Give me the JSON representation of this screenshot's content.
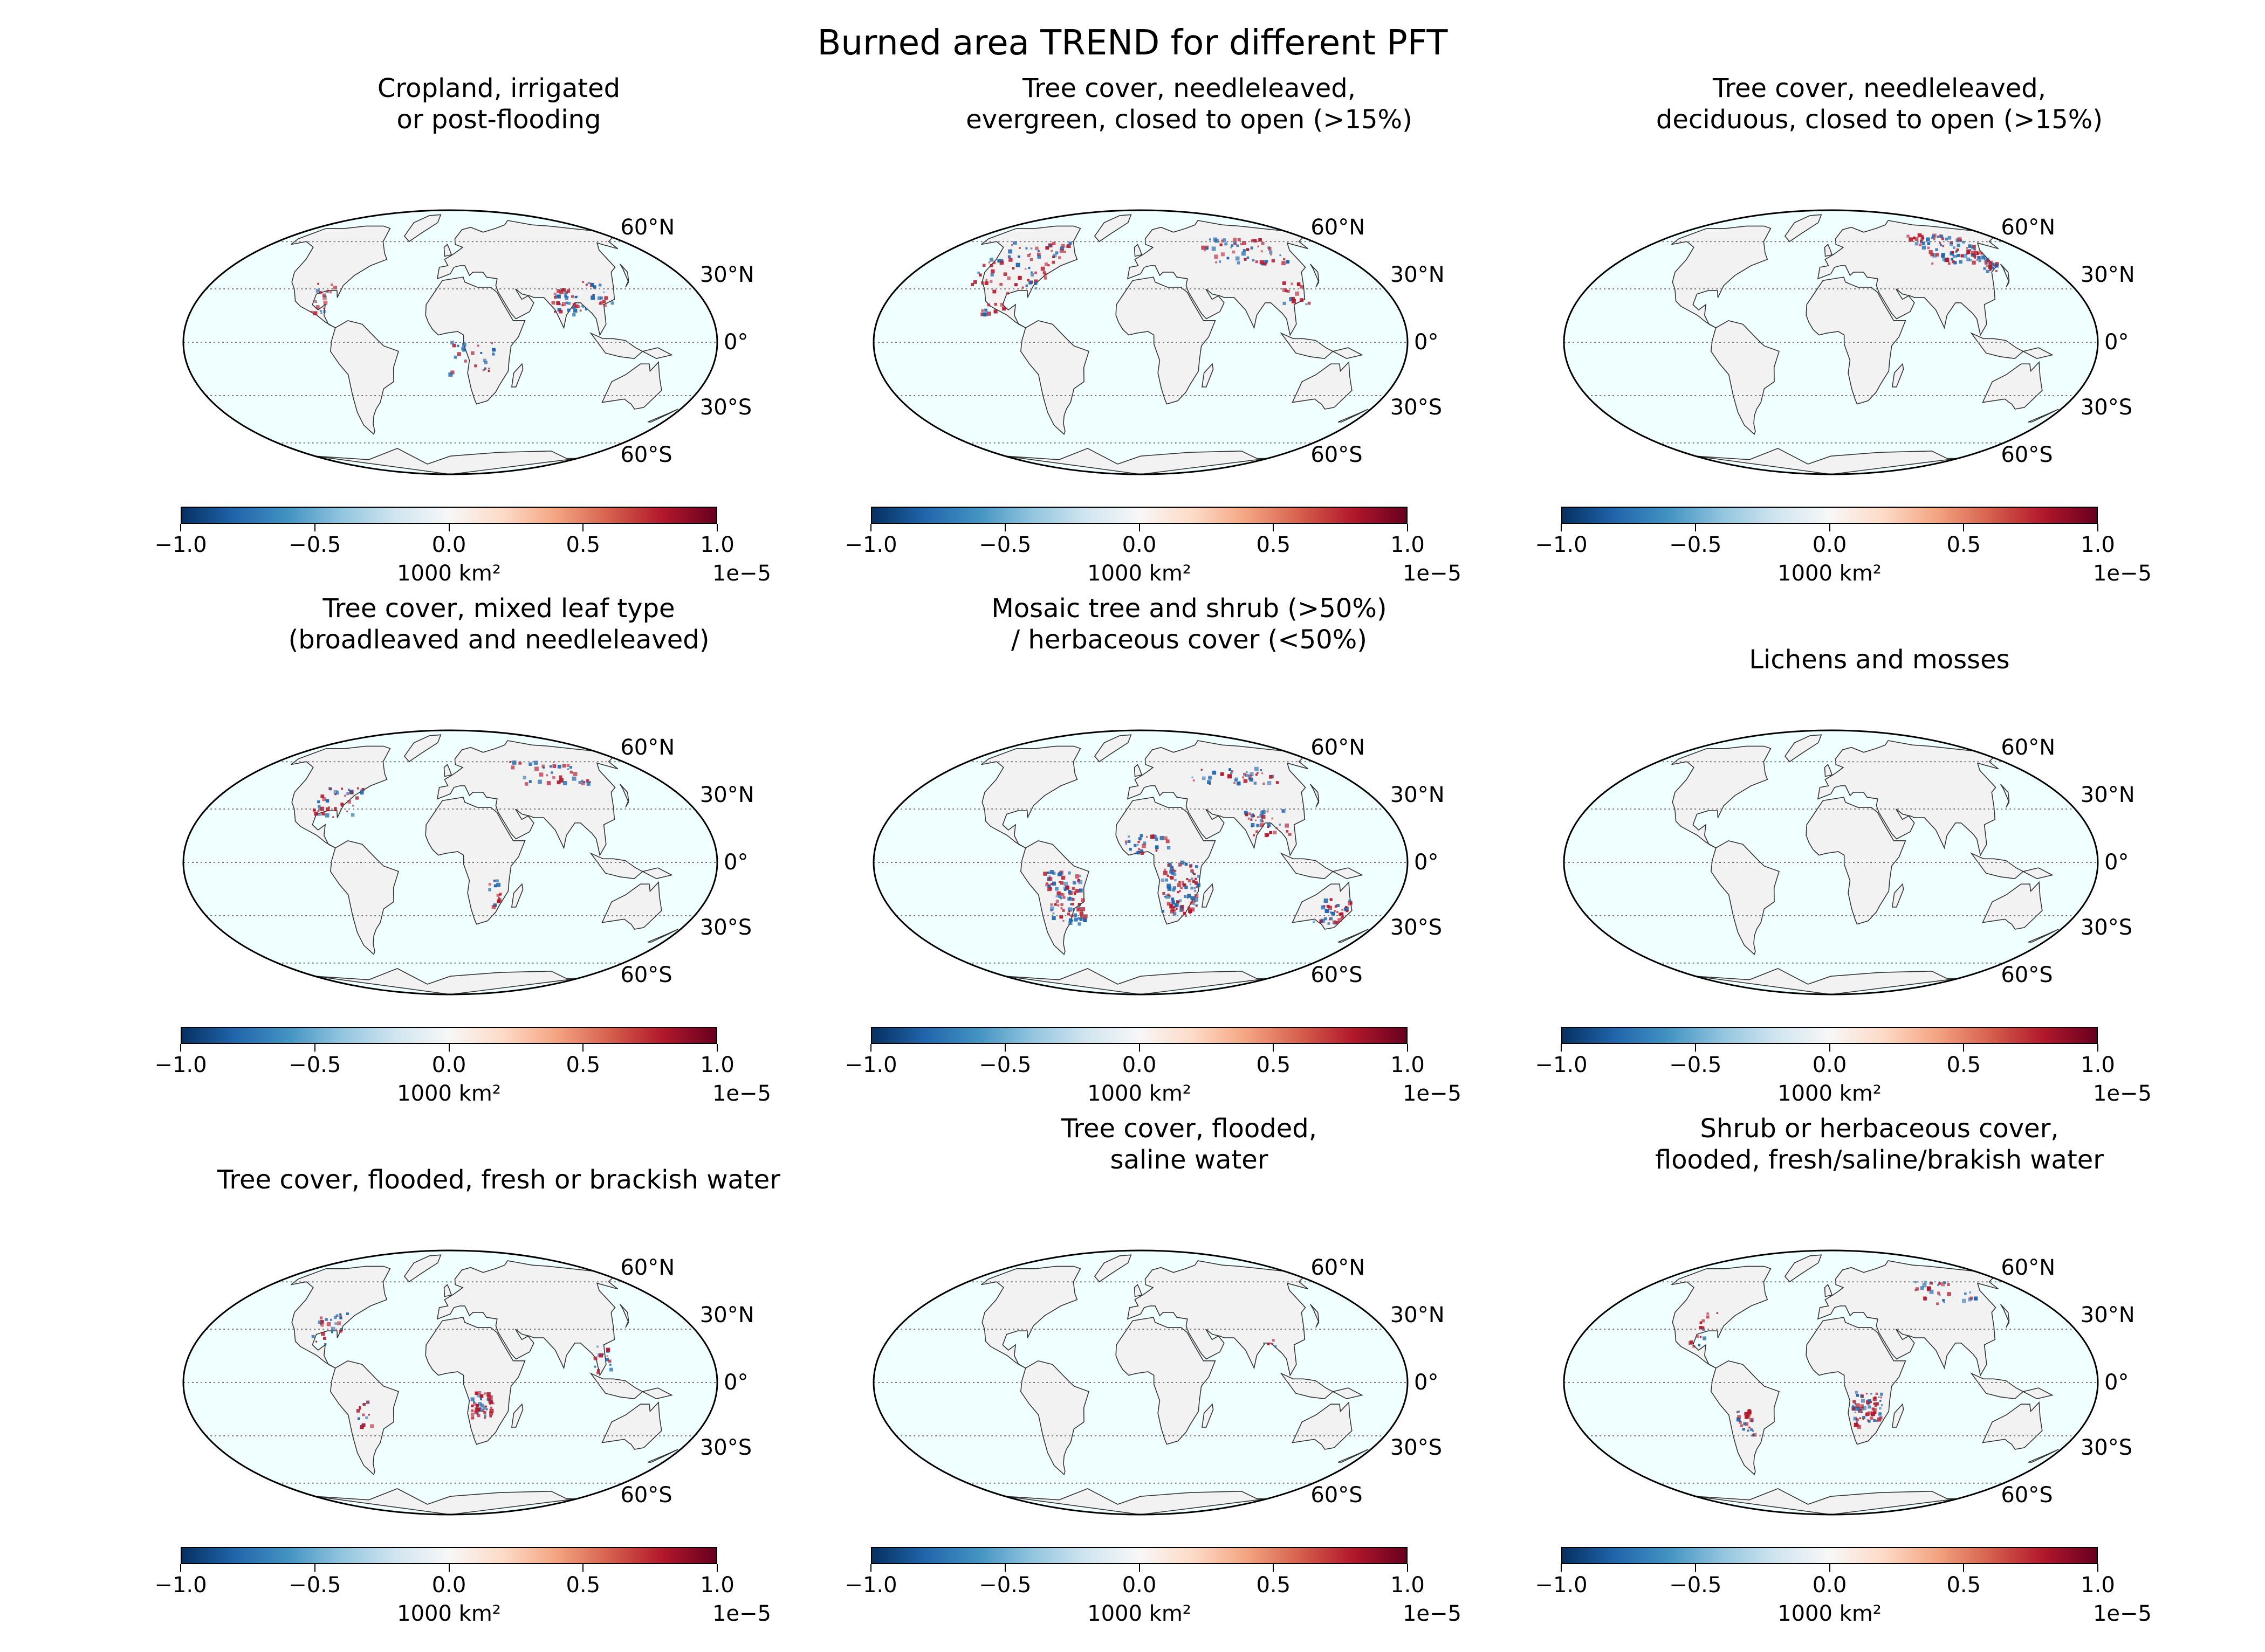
{
  "figure": {
    "title": "Burned area TREND for different PFT",
    "lat_labels": [
      "60°N",
      "30°N",
      "0°",
      "30°S",
      "60°S"
    ],
    "colorbar": {
      "colormap": "RdBu_r",
      "ticks": [
        "−1.0",
        "−0.5",
        "0.0",
        "0.5",
        "1.0"
      ],
      "tick_values": [
        -1.0,
        -0.5,
        0.0,
        0.5,
        1.0
      ],
      "label": "1000 km²",
      "exponent": "1e−5",
      "range": [
        -1.0,
        1.0
      ]
    },
    "colors": {
      "ocean": "#f0ffff",
      "land": "#f2f2f2",
      "border": "#333333",
      "positive": "#b2182b",
      "negative": "#2166ac",
      "gridline": "#777777"
    }
  },
  "panels": [
    {
      "title": "Cropland, irrigated\nor post-flooding"
    },
    {
      "title": "Tree cover, needleleaved,\nevergreen, closed to open (>15%)"
    },
    {
      "title": "Tree cover, needleleaved,\ndeciduous, closed to open (>15%)"
    },
    {
      "title": "Tree cover, mixed leaf type\n(broadleaved and needleleaved)"
    },
    {
      "title": "Mosaic tree and shrub (>50%)\n/ herbaceous cover (<50%)"
    },
    {
      "title": "Lichens and mosses"
    },
    {
      "title": "Tree cover, flooded, fresh or brackish water"
    },
    {
      "title": "Tree cover, flooded,\nsaline water"
    },
    {
      "title": "Shrub or herbaceous cover,\nflooded, fresh/saline/brakish water"
    }
  ]
}
